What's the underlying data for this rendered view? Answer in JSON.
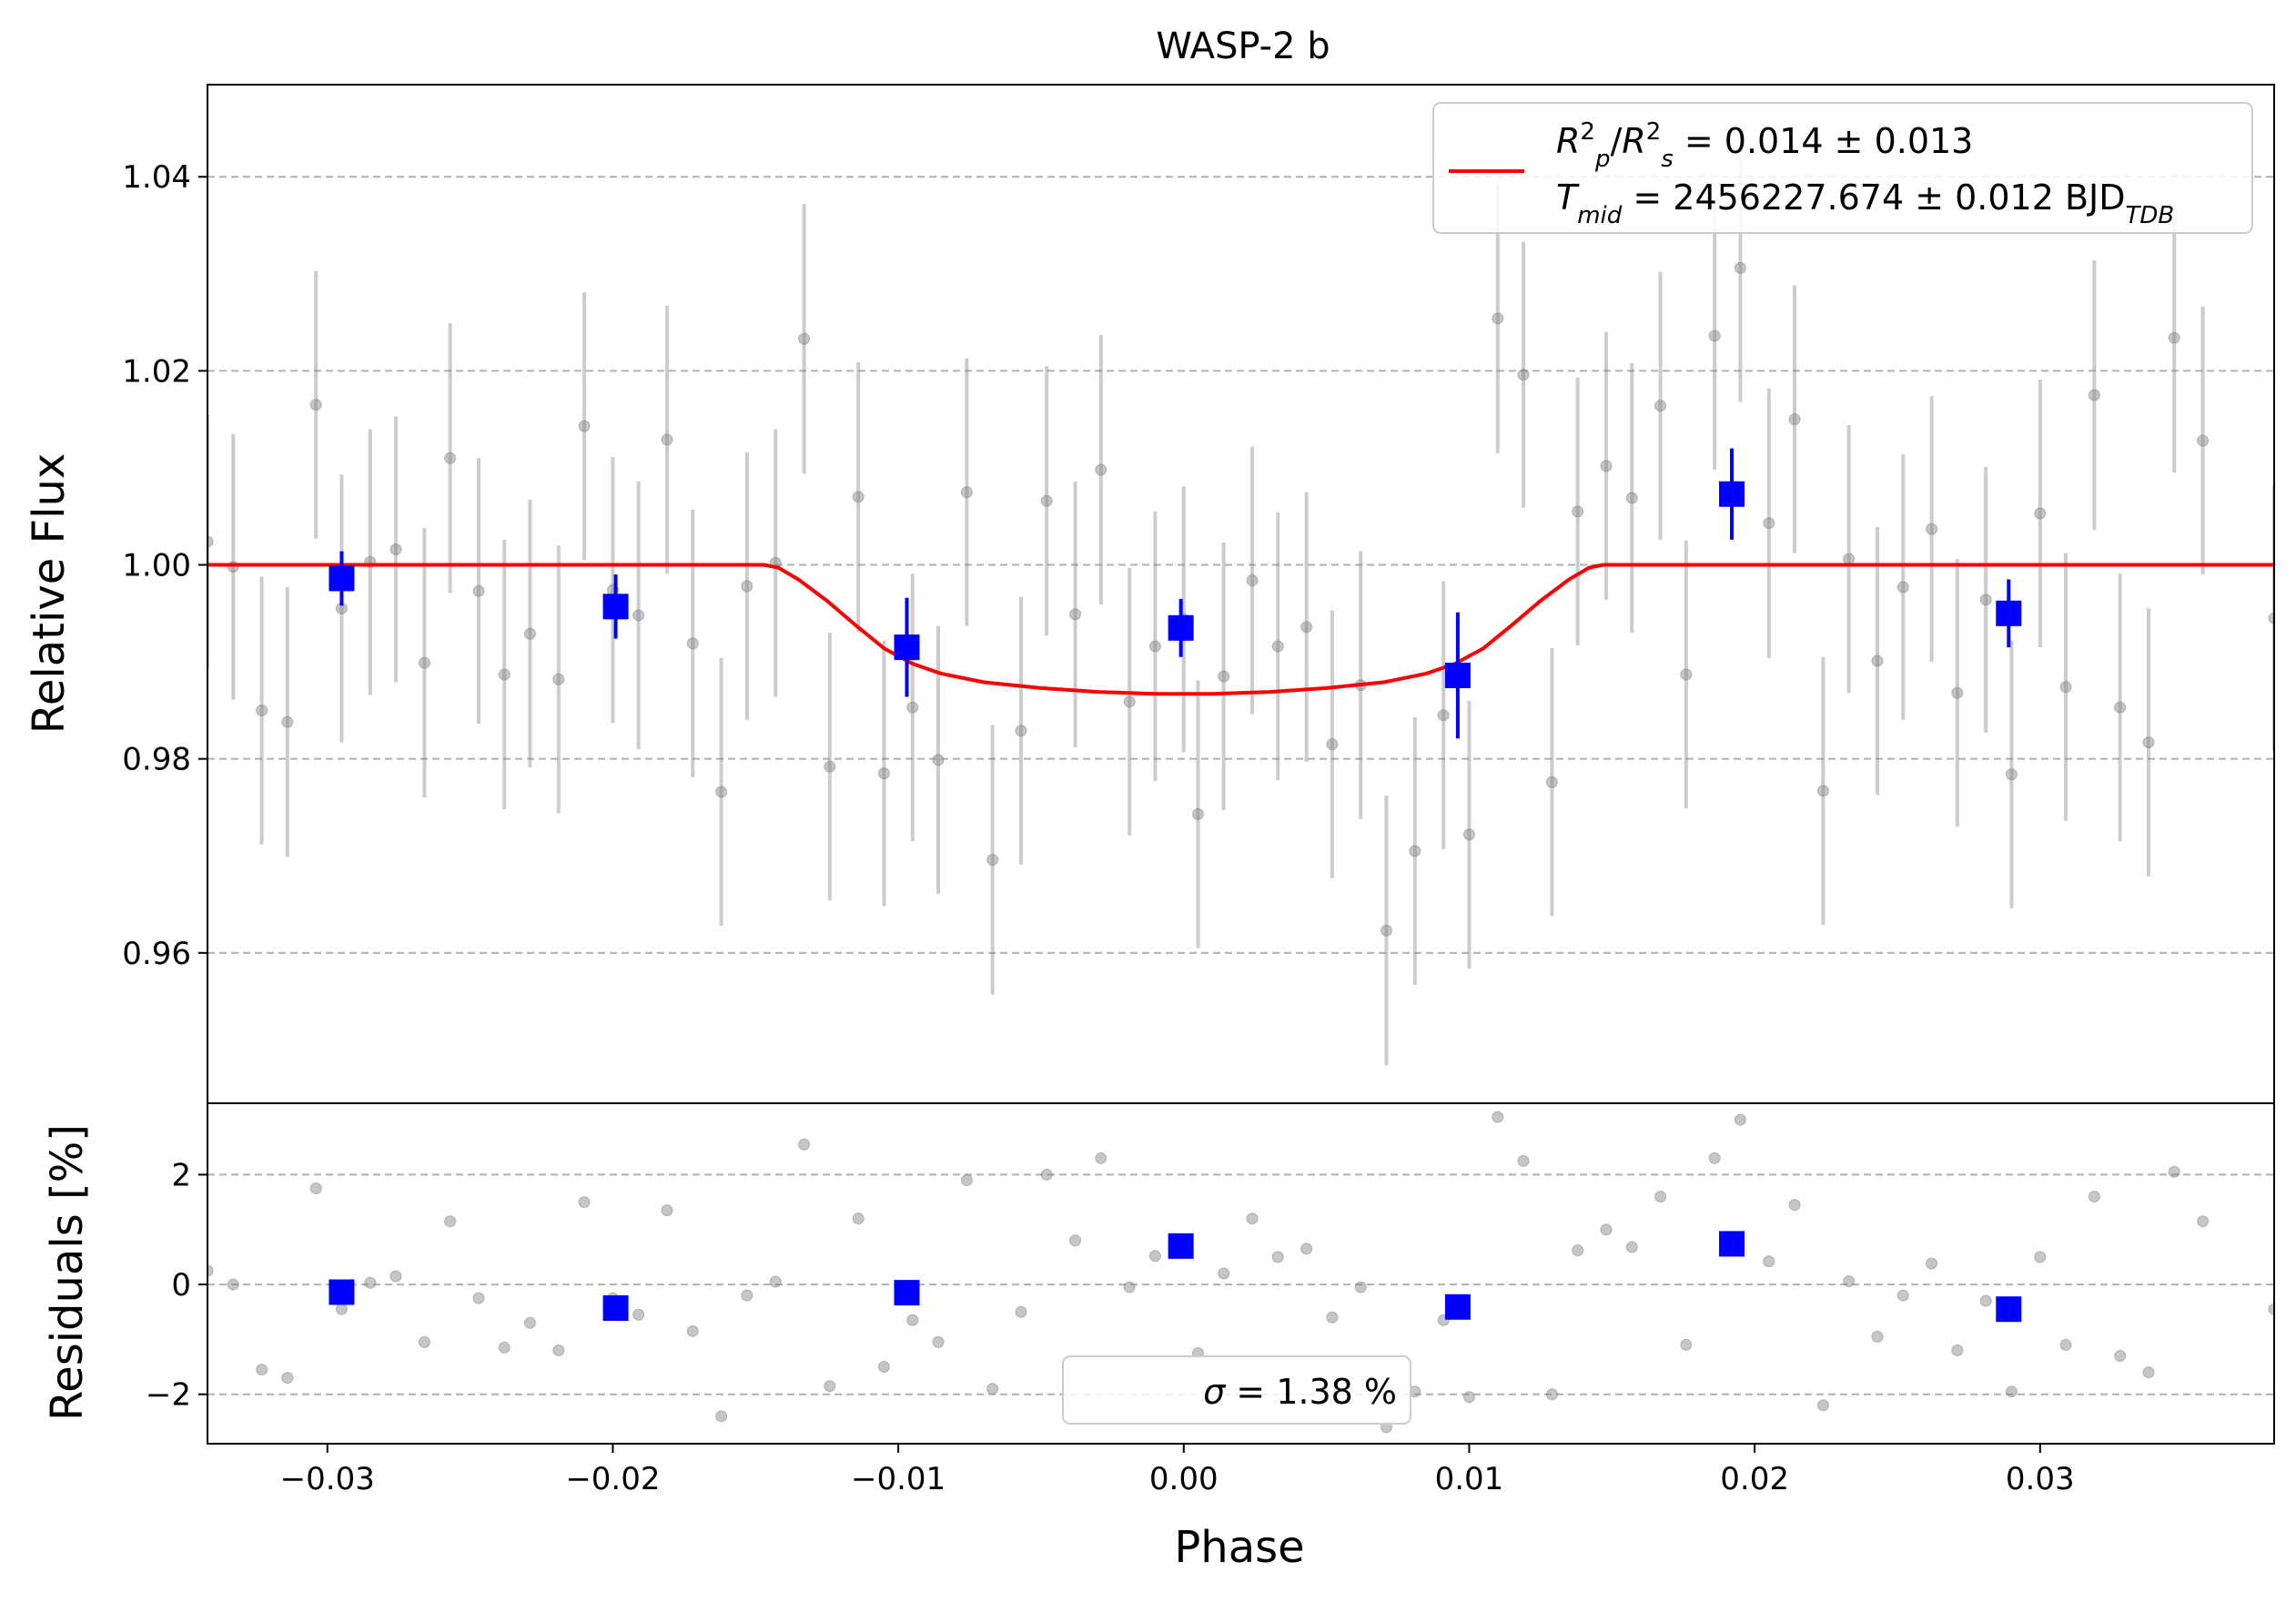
{
  "chart_data": {
    "type": "scatter",
    "title": "WASP-2 b",
    "xlabel": "Phase",
    "xlim": [
      -0.0342,
      0.0382
    ],
    "x_ticks": [
      -0.03,
      -0.02,
      -0.01,
      0.0,
      0.01,
      0.02,
      0.03
    ],
    "x_tick_labels": [
      "−0.03",
      "−0.02",
      "−0.01",
      "0.00",
      "0.01",
      "0.02",
      "0.03"
    ],
    "grid": "horizontal dashed",
    "top_panel": {
      "ylabel": "Relative Flux",
      "ylim": [
        0.9445,
        1.0495
      ],
      "y_ticks": [
        0.96,
        0.98,
        1.0,
        1.02,
        1.04
      ],
      "y_tick_labels": [
        "0.96",
        "0.98",
        "1.00",
        "1.02",
        "1.04"
      ],
      "legend": {
        "placement": "top-right",
        "line1_parts": [
          {
            "t": "R",
            "style": "italic"
          },
          {
            "t": "2",
            "style": "sup"
          },
          {
            "t": "p",
            "style": "italic-sub"
          },
          {
            "t": "/",
            "style": "normal"
          },
          {
            "t": "R",
            "style": "italic"
          },
          {
            "t": "2",
            "style": "sup"
          },
          {
            "t": "s",
            "style": "italic-sub"
          },
          {
            "t": " = 0.014 ± 0.013",
            "style": "normal"
          }
        ],
        "line2_parts": [
          {
            "t": "T",
            "style": "italic"
          },
          {
            "t": "mid",
            "style": "italic-sub"
          },
          {
            "t": " = 2456227.674 ± 0.012 BJD",
            "style": "normal"
          },
          {
            "t": "TDB",
            "style": "italic-sub"
          }
        ],
        "line_color": "#ff0000"
      },
      "series": [
        {
          "kind": "data",
          "color": "#808080",
          "points": [
            [
              -0.0342,
              1.0024,
              0.013
            ],
            [
              -0.0333,
              0.9998,
              0.0137
            ],
            [
              -0.0323,
              0.985,
              0.0138
            ],
            [
              -0.0314,
              0.9838,
              0.0139
            ],
            [
              -0.0304,
              1.0165,
              0.0138
            ],
            [
              -0.0295,
              0.9955,
              0.0138
            ],
            [
              -0.0285,
              1.0003,
              0.0137
            ],
            [
              -0.0276,
              1.0016,
              0.0137
            ],
            [
              -0.0266,
              0.9899,
              0.0139
            ],
            [
              -0.0257,
              1.011,
              0.0139
            ],
            [
              -0.0247,
              0.9973,
              0.0137
            ],
            [
              -0.0238,
              0.9887,
              0.0139
            ],
            [
              -0.0229,
              0.9929,
              0.0138
            ],
            [
              -0.0219,
              0.9882,
              0.0138
            ],
            [
              -0.021,
              1.0143,
              0.0138
            ],
            [
              -0.02,
              0.9974,
              0.0137
            ],
            [
              -0.0191,
              0.9948,
              0.0138
            ],
            [
              -0.0181,
              1.0129,
              0.0138
            ],
            [
              -0.0172,
              0.9919,
              0.0138
            ],
            [
              -0.0162,
              0.9766,
              0.0138
            ],
            [
              -0.0153,
              0.9978,
              0.0138
            ],
            [
              -0.0143,
              1.0002,
              0.0138
            ],
            [
              -0.0133,
              1.0233,
              0.0139
            ],
            [
              -0.0124,
              0.9792,
              0.0138
            ],
            [
              -0.0114,
              1.007,
              0.0139
            ],
            [
              -0.0105,
              0.9785,
              0.0137
            ],
            [
              -0.0095,
              0.9853,
              0.0138
            ],
            [
              -0.0086,
              0.9799,
              0.0138
            ],
            [
              -0.0076,
              1.0075,
              0.0138
            ],
            [
              -0.0067,
              0.9696,
              0.0139
            ],
            [
              -0.0057,
              0.9829,
              0.0138
            ],
            [
              -0.0048,
              1.0066,
              0.0139
            ],
            [
              -0.0038,
              0.9949,
              0.0137
            ],
            [
              -0.0029,
              1.0098,
              0.0139
            ],
            [
              -0.0019,
              0.9859,
              0.0138
            ],
            [
              -0.001,
              0.9916,
              0.0139
            ],
            [
              0.0,
              0.9944,
              0.0137
            ],
            [
              0.0005,
              0.9743,
              0.0138
            ],
            [
              0.0014,
              0.9885,
              0.0138
            ],
            [
              0.0024,
              0.9984,
              0.0138
            ],
            [
              0.0033,
              0.9916,
              0.0138
            ],
            [
              0.0043,
              0.9936,
              0.0139
            ],
            [
              0.0052,
              0.9815,
              0.0138
            ],
            [
              0.0062,
              0.9876,
              0.0138
            ],
            [
              0.0071,
              0.9623,
              0.0139
            ],
            [
              0.0081,
              0.9705,
              0.0138
            ],
            [
              0.0091,
              0.9845,
              0.0138
            ],
            [
              0.01,
              0.9722,
              0.0138
            ],
            [
              0.011,
              1.0254,
              0.0139
            ],
            [
              0.0119,
              1.0196,
              0.0137
            ],
            [
              0.0129,
              0.9776,
              0.0138
            ],
            [
              0.0138,
              1.0055,
              0.0138
            ],
            [
              0.0148,
              1.0102,
              0.0138
            ],
            [
              0.0157,
              1.0069,
              0.0139
            ],
            [
              0.0167,
              1.0164,
              0.0138
            ],
            [
              0.0176,
              0.9887,
              0.0138
            ],
            [
              0.0186,
              1.0236,
              0.0138
            ],
            [
              0.0195,
              1.0306,
              0.0138
            ],
            [
              0.0205,
              1.0043,
              0.0139
            ],
            [
              0.0214,
              1.015,
              0.0138
            ],
            [
              0.0224,
              0.9767,
              0.0138
            ],
            [
              0.0233,
              1.0006,
              0.0138
            ],
            [
              0.0243,
              0.9901,
              0.0138
            ],
            [
              0.0252,
              0.9977,
              0.0137
            ],
            [
              0.0262,
              1.0037,
              0.0137
            ],
            [
              0.0271,
              0.9868,
              0.0138
            ],
            [
              0.0281,
              0.9964,
              0.0137
            ],
            [
              0.029,
              0.9784,
              0.0138
            ],
            [
              0.03,
              1.0053,
              0.0138
            ],
            [
              0.0309,
              0.9874,
              0.0138
            ],
            [
              0.0319,
              1.0175,
              0.0139
            ],
            [
              0.0328,
              0.9853,
              0.0138
            ],
            [
              0.0338,
              0.9817,
              0.0138
            ],
            [
              0.0347,
              1.0234,
              0.0139
            ],
            [
              0.0357,
              1.0128,
              0.0138
            ],
            [
              0.0382,
              0.9945,
              0.0138
            ]
          ]
        },
        {
          "kind": "binned",
          "color": "#0000ff",
          "points": [
            [
              -0.0295,
              0.9986,
              0.0028
            ],
            [
              -0.0199,
              0.9957,
              0.0033
            ],
            [
              -0.0097,
              0.9915,
              0.0051
            ],
            [
              -0.0001,
              0.9935,
              0.003
            ],
            [
              0.0096,
              0.9886,
              0.0065
            ],
            [
              0.0192,
              1.0073,
              0.0047
            ],
            [
              0.0289,
              0.995,
              0.0035
            ]
          ]
        },
        {
          "kind": "model",
          "color": "#ff0000",
          "points": [
            [
              -0.0342,
              1.0
            ],
            [
              -0.0147,
              1.0
            ],
            [
              -0.0142,
              0.9997
            ],
            [
              -0.0135,
              0.9985
            ],
            [
              -0.0125,
              0.9963
            ],
            [
              -0.0115,
              0.9938
            ],
            [
              -0.0105,
              0.9914
            ],
            [
              -0.0095,
              0.9898
            ],
            [
              -0.0085,
              0.9888
            ],
            [
              -0.007,
              0.9879
            ],
            [
              -0.005,
              0.9873
            ],
            [
              -0.003,
              0.9869
            ],
            [
              -0.001,
              0.9867
            ],
            [
              0.0,
              0.9867
            ],
            [
              0.001,
              0.9867
            ],
            [
              0.003,
              0.9869
            ],
            [
              0.005,
              0.9873
            ],
            [
              0.007,
              0.9879
            ],
            [
              0.0085,
              0.9888
            ],
            [
              0.0095,
              0.9898
            ],
            [
              0.0105,
              0.9914
            ],
            [
              0.0115,
              0.9938
            ],
            [
              0.0125,
              0.9963
            ],
            [
              0.0135,
              0.9985
            ],
            [
              0.0142,
              0.9997
            ],
            [
              0.0147,
              1.0
            ],
            [
              0.0382,
              1.0
            ]
          ]
        }
      ]
    },
    "bottom_panel": {
      "ylabel": "Residuals [%]",
      "ylim": [
        -2.9,
        3.3
      ],
      "y_ticks": [
        -2,
        0,
        2
      ],
      "y_tick_labels": [
        "−2",
        "0",
        "2"
      ],
      "legend": {
        "placement": "bottom-center",
        "text_parts": [
          {
            "t": "σ",
            "style": "italic"
          },
          {
            "t": " = 1.38 %",
            "style": "normal"
          }
        ]
      },
      "series": [
        {
          "kind": "data",
          "color": "#808080",
          "points": [
            [
              -0.0342,
              0.25
            ],
            [
              -0.0333,
              0.0
            ],
            [
              -0.0323,
              -1.55
            ],
            [
              -0.0314,
              -1.7
            ],
            [
              -0.0304,
              1.75
            ],
            [
              -0.0295,
              -0.45
            ],
            [
              -0.0285,
              0.03
            ],
            [
              -0.0276,
              0.15
            ],
            [
              -0.0266,
              -1.05
            ],
            [
              -0.0257,
              1.15
            ],
            [
              -0.0247,
              -0.25
            ],
            [
              -0.0238,
              -1.15
            ],
            [
              -0.0229,
              -0.7
            ],
            [
              -0.0219,
              -1.2
            ],
            [
              -0.021,
              1.5
            ],
            [
              -0.02,
              -0.25
            ],
            [
              -0.0191,
              -0.55
            ],
            [
              -0.0181,
              1.35
            ],
            [
              -0.0172,
              -0.85
            ],
            [
              -0.0162,
              -2.4
            ],
            [
              -0.0153,
              -0.2
            ],
            [
              -0.0143,
              0.05
            ],
            [
              -0.0133,
              2.55
            ],
            [
              -0.0124,
              -1.85
            ],
            [
              -0.0114,
              1.2
            ],
            [
              -0.0105,
              -1.5
            ],
            [
              -0.0095,
              -0.65
            ],
            [
              -0.0086,
              -1.05
            ],
            [
              -0.0076,
              1.9
            ],
            [
              -0.0067,
              -1.9
            ],
            [
              -0.0057,
              -0.5
            ],
            [
              -0.0048,
              2.0
            ],
            [
              -0.0038,
              0.8
            ],
            [
              -0.0029,
              2.3
            ],
            [
              -0.0019,
              -0.05
            ],
            [
              -0.001,
              0.52
            ],
            [
              0.0,
              0.68
            ],
            [
              0.0005,
              -1.25
            ],
            [
              0.0014,
              0.2
            ],
            [
              0.0024,
              1.2
            ],
            [
              0.0033,
              0.5
            ],
            [
              0.0043,
              0.65
            ],
            [
              0.0052,
              -0.6
            ],
            [
              0.0062,
              -0.05
            ],
            [
              0.0071,
              -2.6
            ],
            [
              0.0081,
              -1.95
            ],
            [
              0.0091,
              -0.65
            ],
            [
              0.01,
              -2.05
            ],
            [
              0.011,
              3.05
            ],
            [
              0.0119,
              2.25
            ],
            [
              0.0129,
              -2.0
            ],
            [
              0.0138,
              0.62
            ],
            [
              0.0148,
              1.0
            ],
            [
              0.0157,
              0.68
            ],
            [
              0.0167,
              1.6
            ],
            [
              0.0176,
              -1.1
            ],
            [
              0.0186,
              2.3
            ],
            [
              0.0195,
              3.0
            ],
            [
              0.0205,
              0.42
            ],
            [
              0.0214,
              1.45
            ],
            [
              0.0224,
              -2.2
            ],
            [
              0.0233,
              0.06
            ],
            [
              0.0243,
              -0.95
            ],
            [
              0.0252,
              -0.2
            ],
            [
              0.0262,
              0.38
            ],
            [
              0.0271,
              -1.2
            ],
            [
              0.0281,
              -0.3
            ],
            [
              0.029,
              -1.95
            ],
            [
              0.03,
              0.5
            ],
            [
              0.0309,
              -1.1
            ],
            [
              0.0319,
              1.6
            ],
            [
              0.0328,
              -1.3
            ],
            [
              0.0338,
              -1.6
            ],
            [
              0.0347,
              2.05
            ],
            [
              0.0357,
              1.15
            ],
            [
              0.0382,
              -0.45
            ]
          ]
        },
        {
          "kind": "binned",
          "color": "#0000ff",
          "points": [
            [
              -0.0295,
              -0.14
            ],
            [
              -0.0199,
              -0.43
            ],
            [
              -0.0097,
              -0.15
            ],
            [
              -0.0001,
              0.7
            ],
            [
              0.0096,
              -0.41
            ],
            [
              0.0192,
              0.74
            ],
            [
              0.0289,
              -0.45
            ]
          ]
        }
      ]
    }
  }
}
